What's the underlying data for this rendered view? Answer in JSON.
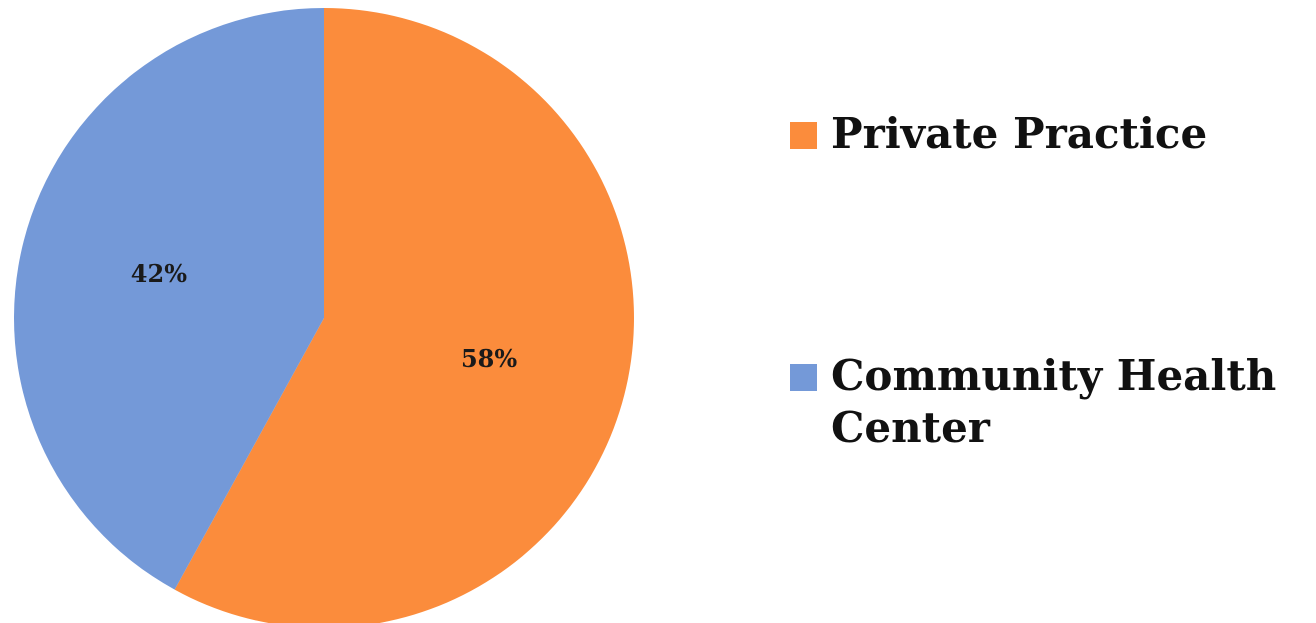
{
  "chart_data": {
    "type": "pie",
    "categories": [
      "Private Practice",
      "Community Health Center"
    ],
    "values": [
      58,
      42
    ],
    "value_labels": [
      "58%",
      "42%"
    ],
    "colors": [
      "#fb8c3c",
      "#7499d8"
    ],
    "title": "",
    "legend_position": "right",
    "start_angle_deg": 0,
    "direction": "clockwise"
  },
  "legend": {
    "items": [
      {
        "label": "Private Practice",
        "color": "#fb8c3c"
      },
      {
        "label": "Community Health Center",
        "color": "#7499d8"
      }
    ]
  }
}
